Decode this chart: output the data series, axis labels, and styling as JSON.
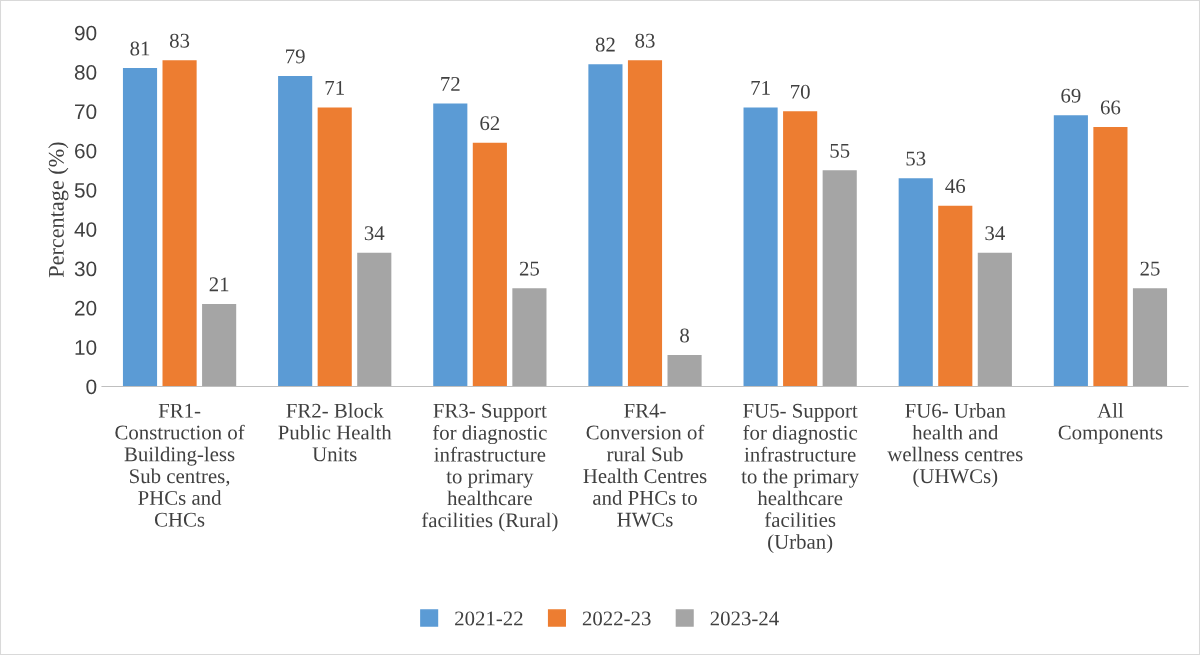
{
  "chart_data": {
    "type": "bar",
    "ylabel": "Percentage (%)",
    "categories": [
      "FR1-\nConstruction of\nBuilding-less\nSub centres,\nPHCs and\nCHCs",
      "FR2- Block\nPublic Health\nUnits",
      "FR3- Support\nfor diagnostic\ninfrastructure\nto primary\nhealthcare\nfacilities (Rural)",
      "FR4-\nConversion of\nrural Sub\nHealth Centres\nand PHCs to\nHWCs",
      "FU5- Support\nfor diagnostic\ninfrastructure\nto the primary\nhealthcare\nfacilities\n(Urban)",
      "FU6- Urban\nhealth and\nwellness centres\n(UHWCs)",
      "All\nComponents"
    ],
    "series": [
      {
        "name": "2021-22",
        "color": "#5b9bd5",
        "values": [
          81,
          79,
          72,
          82,
          71,
          53,
          69
        ]
      },
      {
        "name": "2022-23",
        "color": "#ed7d31",
        "values": [
          83,
          71,
          62,
          83,
          70,
          46,
          66
        ]
      },
      {
        "name": "2023-24",
        "color": "#a5a5a5",
        "values": [
          21,
          34,
          25,
          8,
          55,
          34,
          25
        ]
      }
    ],
    "ylim": [
      0,
      90
    ],
    "yticks": [
      0,
      10,
      20,
      30,
      40,
      50,
      60,
      70,
      80,
      90
    ],
    "data_labels": true,
    "grid": false,
    "legend": "bottom"
  }
}
